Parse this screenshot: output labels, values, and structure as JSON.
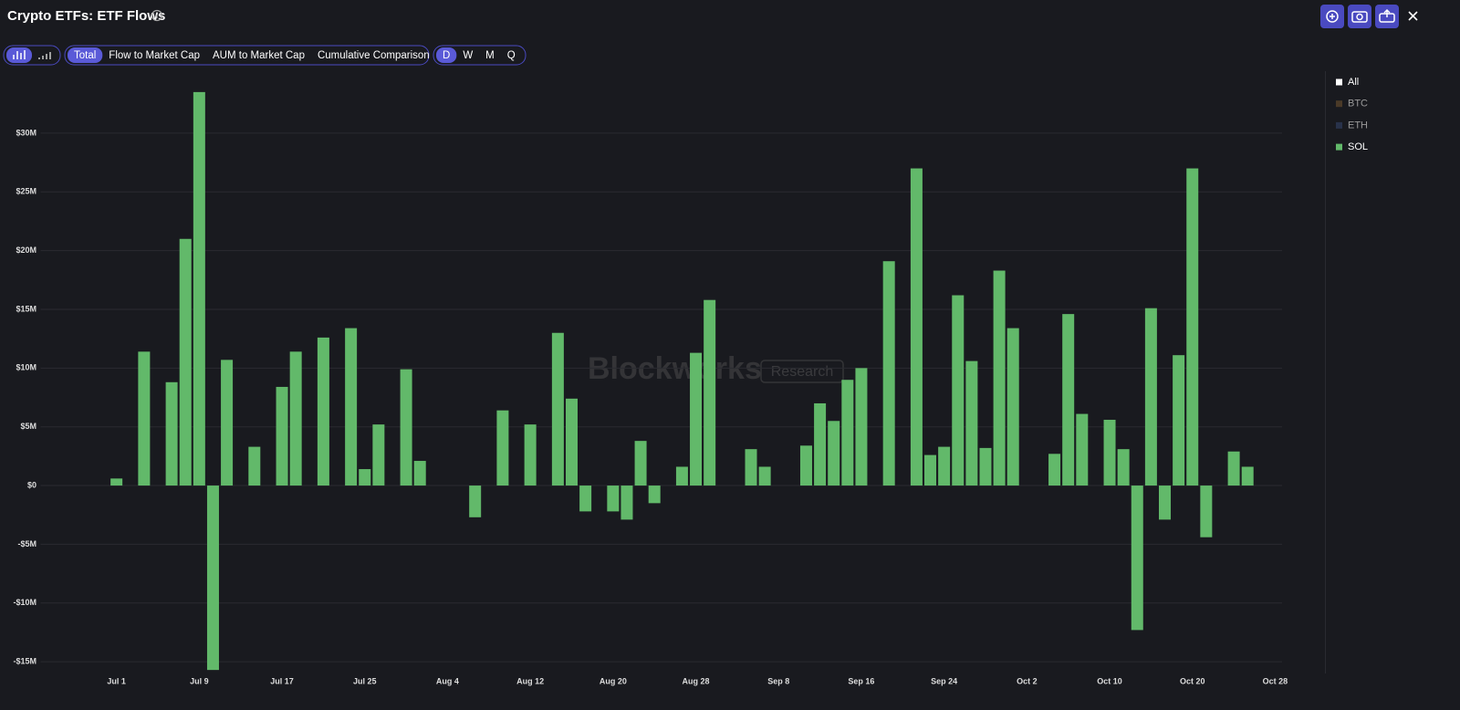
{
  "ui": {
    "title": "Crypto ETFs: ETF Flows",
    "chart_buttons": [
      "Total",
      "Flow to Market Cap",
      "AUM to Market Cap",
      "Cumulative Comparison"
    ],
    "period_buttons": [
      "D",
      "W",
      "M",
      "Q"
    ],
    "watermark": "Blockworks",
    "watermark_tag": "Research"
  },
  "chart_data": {
    "type": "bar",
    "categories": [
      null,
      null,
      null,
      null,
      null,
      "Jul 1",
      null,
      null,
      null,
      null,
      null,
      "Jul 9",
      null,
      null,
      null,
      null,
      null,
      "Jul 17",
      null,
      null,
      null,
      null,
      null,
      "Jul 25",
      null,
      null,
      null,
      null,
      null,
      "Aug 4",
      null,
      null,
      null,
      null,
      null,
      "Aug 12",
      null,
      null,
      null,
      null,
      null,
      "Aug 20",
      null,
      null,
      null,
      null,
      null,
      "Aug 28",
      null,
      null,
      null,
      null,
      null,
      "Sep 8",
      null,
      null,
      null,
      null,
      null,
      "Sep 16",
      null,
      null,
      null,
      null,
      null,
      "Sep 24",
      null,
      null,
      null,
      null,
      null,
      "Oct 2",
      null,
      null,
      null,
      null,
      null,
      "Oct 10",
      null,
      null,
      null,
      null,
      null,
      "Oct 20",
      null,
      null,
      null,
      null,
      null,
      "Oct 28"
    ],
    "series": [
      {
        "name": "SOL",
        "color": "#62b96a",
        "values": [
          null,
          null,
          null,
          null,
          null,
          0.6,
          null,
          11.4,
          null,
          8.8,
          21,
          33.5,
          -15.7,
          10.7,
          null,
          3.3,
          null,
          8.4,
          11.4,
          null,
          12.6,
          null,
          13.4,
          1.4,
          5.2,
          null,
          9.9,
          2.1,
          null,
          null,
          null,
          -2.7,
          null,
          6.4,
          null,
          5.2,
          null,
          13,
          7.4,
          -2.2,
          null,
          -2.2,
          -2.9,
          3.8,
          -1.5,
          null,
          1.6,
          11.3,
          15.8,
          null,
          null,
          3.1,
          1.6,
          null,
          null,
          3.4,
          7,
          5.5,
          9,
          10,
          null,
          19.1,
          null,
          27,
          2.6,
          3.3,
          16.2,
          10.6,
          3.2,
          18.3,
          13.4,
          null,
          null,
          2.7,
          14.6,
          6.1,
          null,
          5.6,
          3.1,
          -12.3,
          15.1,
          -2.9,
          11.1,
          27,
          -4.4,
          null,
          2.9,
          1.6,
          null,
          null
        ]
      }
    ],
    "legend": [
      {
        "name": "All",
        "color": "#ffffff"
      },
      {
        "name": "BTC",
        "color": "#4a3a28"
      },
      {
        "name": "ETH",
        "color": "#28324a"
      }
    ],
    "ylim": [
      -16,
      34.5
    ],
    "yticks": [
      {
        "value": -15,
        "label": "-$15M"
      },
      {
        "value": -10,
        "label": "-$10M"
      },
      {
        "value": -5,
        "label": "-$5M"
      },
      {
        "value": 0,
        "label": "$0"
      },
      {
        "value": 5,
        "label": "$5M"
      },
      {
        "value": 10,
        "label": "$10M"
      },
      {
        "value": 15,
        "label": "$15M"
      },
      {
        "value": 20,
        "label": "$20M"
      },
      {
        "value": 25,
        "label": "$25M"
      },
      {
        "value": 30,
        "label": "$30M"
      }
    ],
    "grid": true
  }
}
